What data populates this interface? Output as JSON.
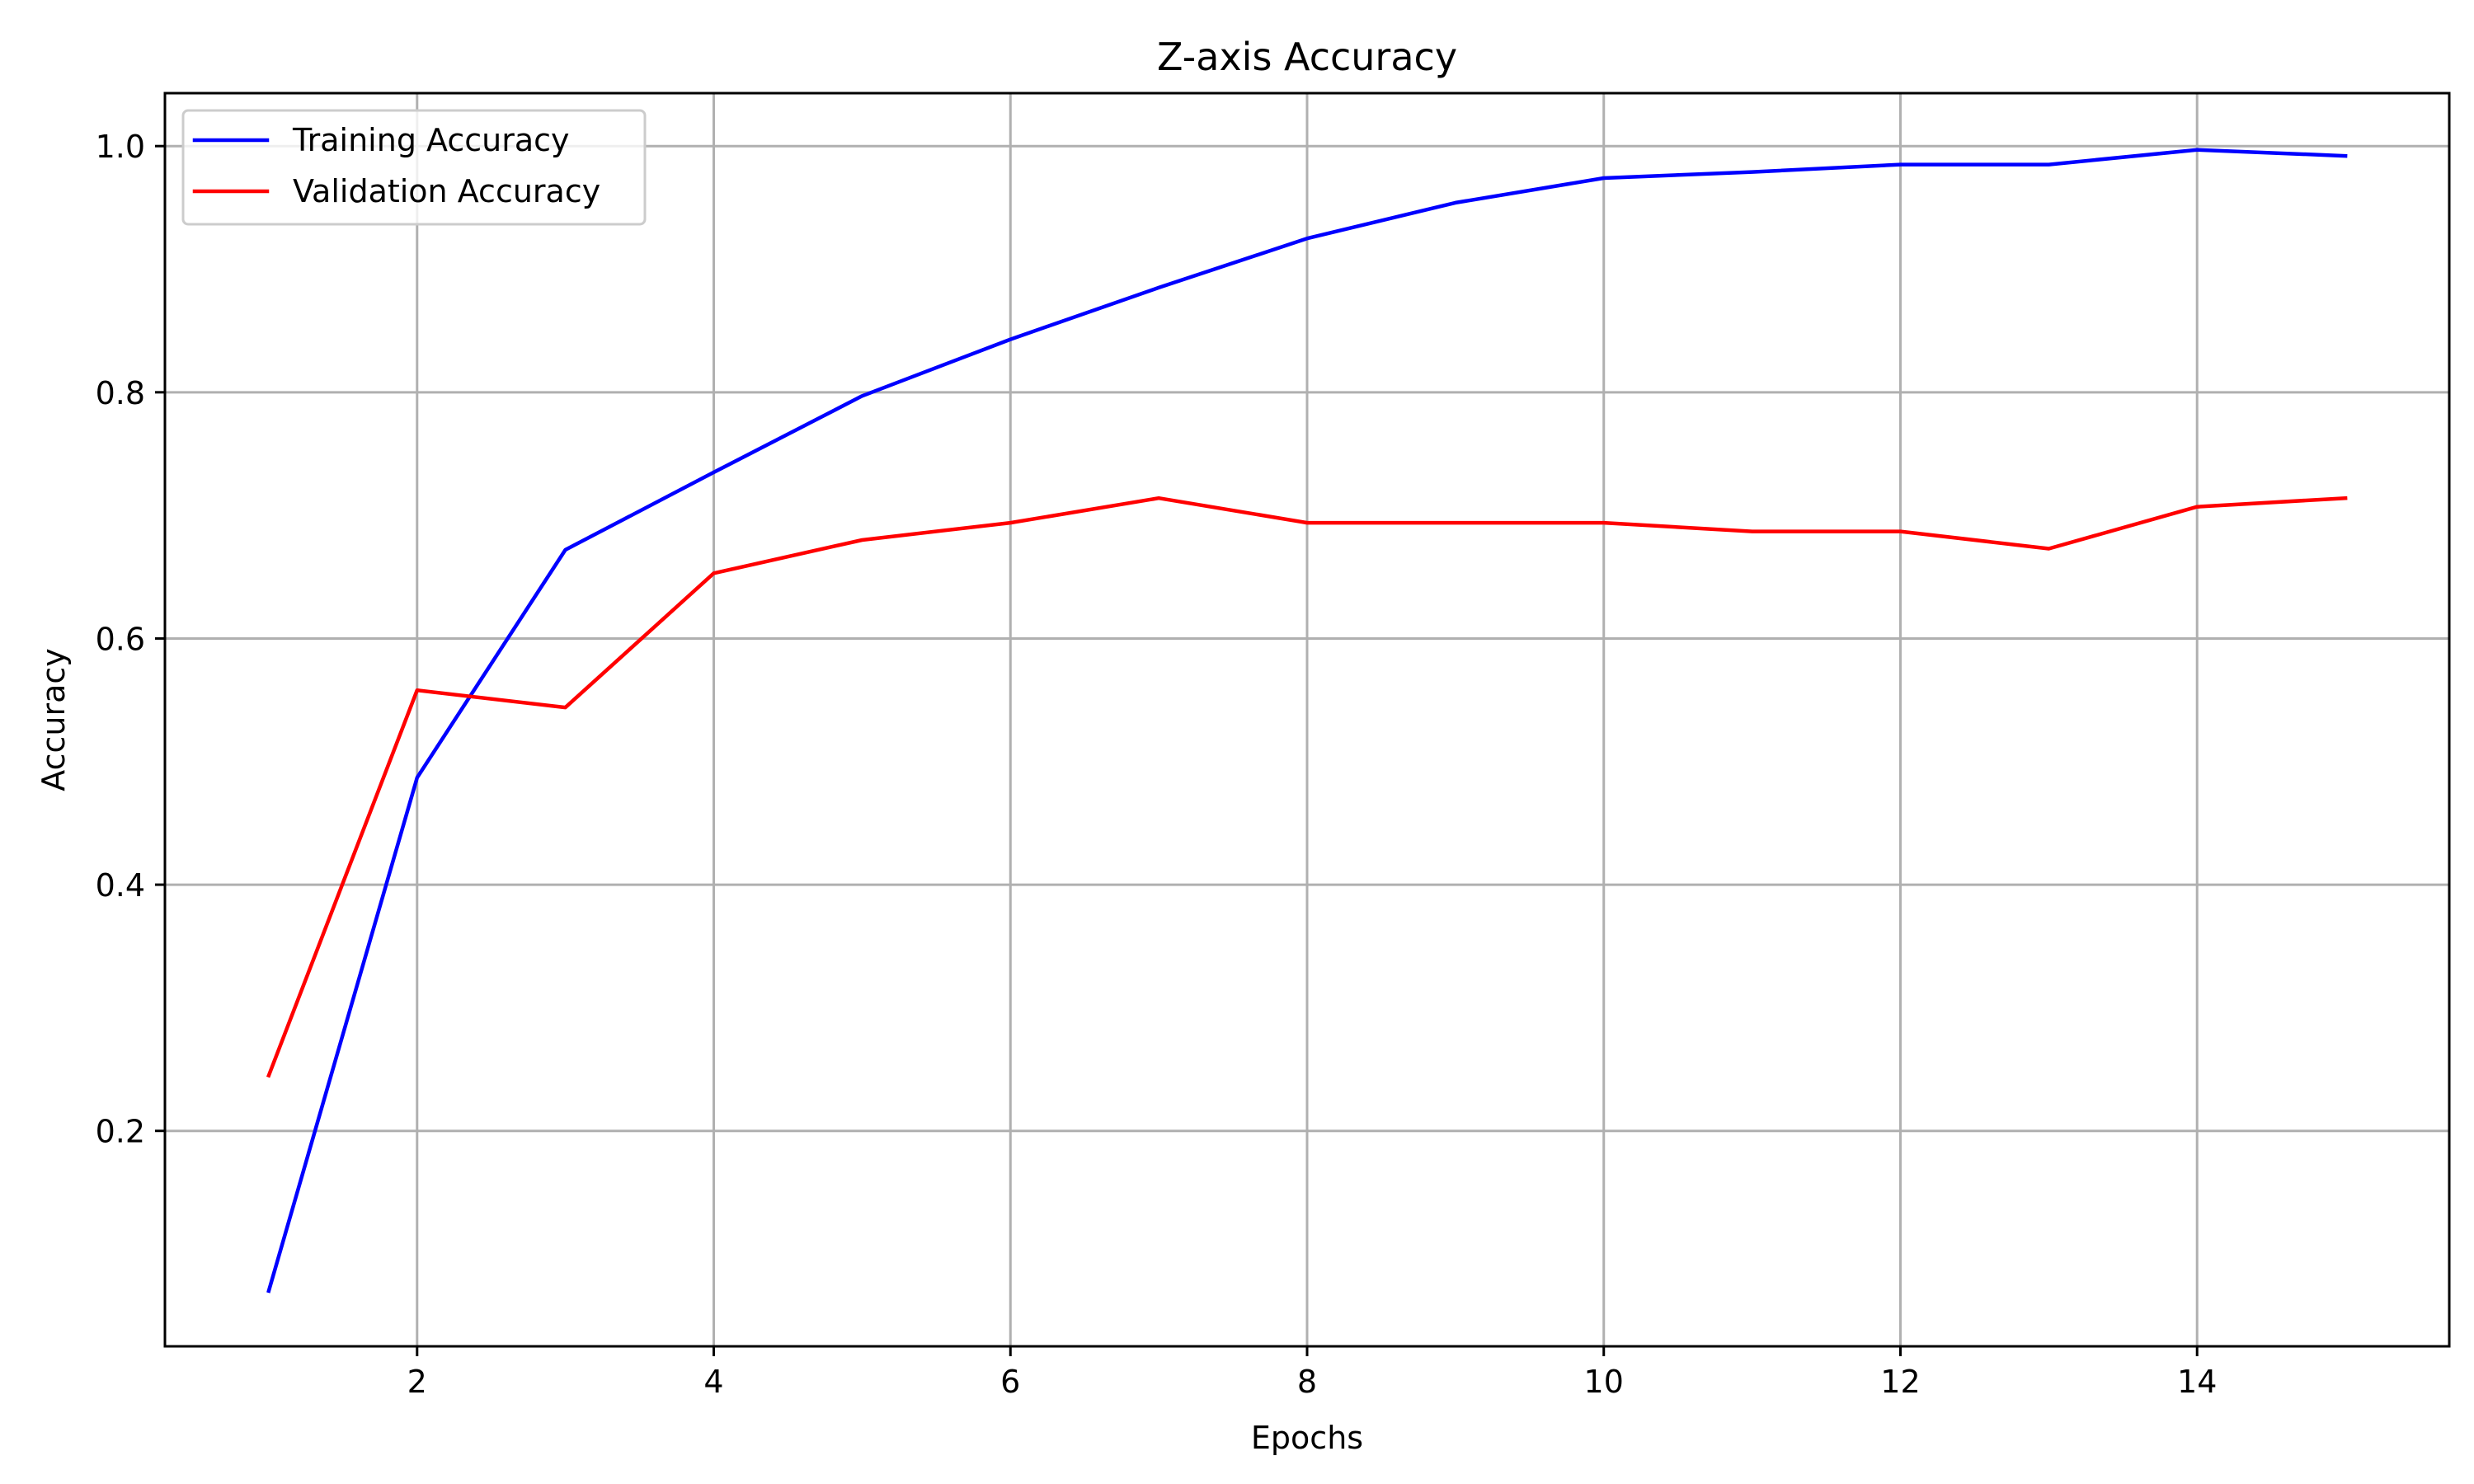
{
  "chart_data": {
    "type": "line",
    "title": "Z-axis Accuracy",
    "xlabel": "Epochs",
    "ylabel": "Accuracy",
    "x": [
      1,
      2,
      3,
      4,
      5,
      6,
      7,
      8,
      9,
      10,
      11,
      12,
      13,
      14,
      15
    ],
    "xlim": [
      0.3,
      15.7
    ],
    "ylim": [
      0.025,
      1.043
    ],
    "xticks": [
      2,
      4,
      6,
      8,
      10,
      12,
      14
    ],
    "xtick_labels": [
      "2",
      "4",
      "6",
      "8",
      "10",
      "12",
      "14"
    ],
    "yticks": [
      0.2,
      0.4,
      0.6,
      0.8,
      1.0
    ],
    "ytick_labels": [
      "0.2",
      "0.4",
      "0.6",
      "0.8",
      "1.0"
    ],
    "grid": true,
    "legend_position": "top-left",
    "series": [
      {
        "name": "Training Accuracy",
        "color": "#0000ff",
        "values": [
          0.07,
          0.487,
          0.672,
          0.735,
          0.797,
          0.843,
          0.885,
          0.925,
          0.954,
          0.974,
          0.979,
          0.985,
          0.985,
          0.997,
          0.992
        ]
      },
      {
        "name": "Validation Accuracy",
        "color": "#ff0000",
        "values": [
          0.245,
          0.558,
          0.544,
          0.653,
          0.68,
          0.694,
          0.714,
          0.694,
          0.694,
          0.694,
          0.687,
          0.687,
          0.673,
          0.707,
          0.714
        ]
      }
    ]
  }
}
